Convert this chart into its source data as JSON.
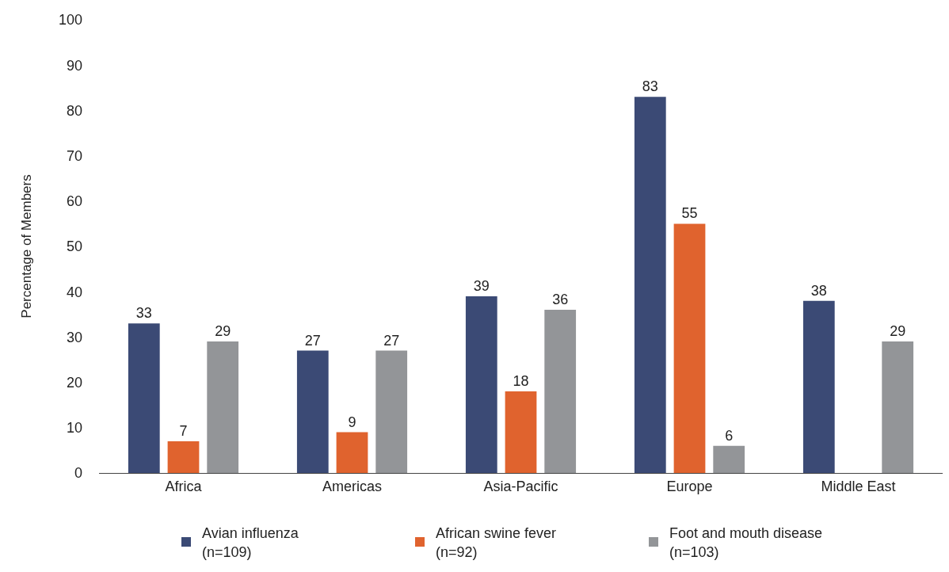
{
  "chart_data": {
    "type": "bar",
    "ylabel": "Percentage of Members",
    "categories": [
      "Africa",
      "Americas",
      "Asia-Pacific",
      "Europe",
      "Middle East"
    ],
    "series": [
      {
        "name": "Avian influenza\n(n=109)",
        "color": "#3b4a75",
        "values": [
          33,
          27,
          39,
          83,
          38
        ]
      },
      {
        "name": "African swine fever\n(n=92)",
        "color": "#e0632e",
        "values": [
          7,
          9,
          18,
          55,
          null
        ]
      },
      {
        "name": "Foot and mouth disease\n(n=103)",
        "color": "#939598",
        "values": [
          29,
          27,
          36,
          6,
          29
        ]
      }
    ],
    "ylim": [
      0,
      100
    ],
    "yticks": [
      0,
      10,
      20,
      30,
      40,
      50,
      60,
      70,
      80,
      90,
      100
    ],
    "grid": false,
    "legend": "bottom",
    "data_labels": true
  }
}
